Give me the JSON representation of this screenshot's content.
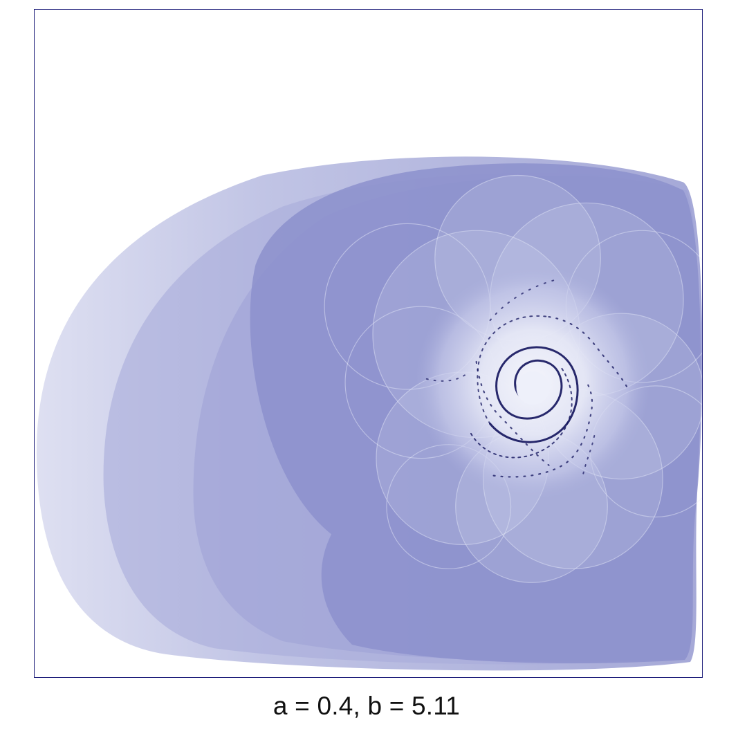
{
  "caption": "a = 0.4, b = 5.11",
  "colors": {
    "frame_border": "#1d1d7a",
    "fill_base": "#8c91cc",
    "fill_light": "#d7d9ef",
    "spiral_dark": "#12135c",
    "center_glow": "#eef0fa"
  }
}
